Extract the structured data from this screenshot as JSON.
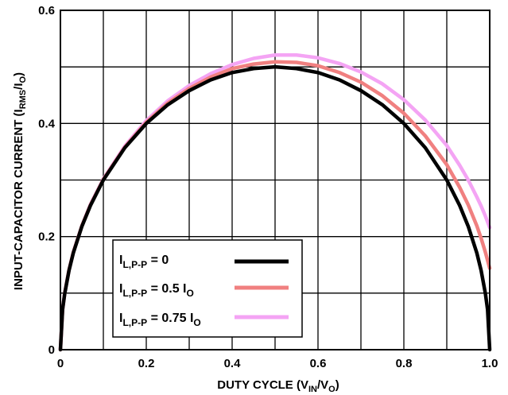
{
  "chart_data": {
    "type": "line",
    "title": "",
    "xlabel": {
      "main": "DUTY CYCLE (V",
      "sub1": "IN",
      "mid": "/V",
      "sub2": "O",
      "end": ")"
    },
    "ylabel": {
      "main": "INPUT-CAPACITOR CURRENT (I",
      "sub1": "RMS",
      "mid": "/I",
      "sub2": "O",
      "end": ")"
    },
    "xlim": [
      0,
      1.0
    ],
    "ylim": [
      0,
      0.6
    ],
    "x_ticks": [
      {
        "value": 0,
        "label": "0"
      },
      {
        "value": 0.2,
        "label": "0.2"
      },
      {
        "value": 0.4,
        "label": "0.4"
      },
      {
        "value": 0.6,
        "label": "0.6"
      },
      {
        "value": 0.8,
        "label": "0.8"
      },
      {
        "value": 1.0,
        "label": "1.0"
      }
    ],
    "y_ticks": [
      {
        "value": 0,
        "label": "0"
      },
      {
        "value": 0.2,
        "label": "0.2"
      },
      {
        "value": 0.4,
        "label": "0.4"
      },
      {
        "value": 0.6,
        "label": "0.6"
      }
    ],
    "grid": true,
    "grid_x_step": 0.1,
    "grid_y_step": 0.1,
    "legend_position": "bottom-left",
    "series": [
      {
        "name": {
          "pre": "I",
          "sub": "L,P-P",
          "post": " = 0",
          "post_sub": ""
        },
        "color": "#000000",
        "x": [
          0,
          0.005,
          0.01,
          0.02,
          0.03,
          0.05,
          0.07,
          0.1,
          0.15,
          0.2,
          0.25,
          0.3,
          0.35,
          0.4,
          0.45,
          0.5,
          0.55,
          0.6,
          0.65,
          0.7,
          0.75,
          0.8,
          0.85,
          0.9,
          0.93,
          0.95,
          0.97,
          0.98,
          0.99,
          0.995,
          1.0
        ],
        "y": [
          0,
          0.071,
          0.099,
          0.14,
          0.171,
          0.218,
          0.255,
          0.3,
          0.357,
          0.4,
          0.433,
          0.458,
          0.477,
          0.49,
          0.497,
          0.5,
          0.497,
          0.49,
          0.477,
          0.458,
          0.433,
          0.4,
          0.357,
          0.3,
          0.255,
          0.218,
          0.171,
          0.14,
          0.099,
          0.071,
          0
        ]
      },
      {
        "name": {
          "pre": "I",
          "sub": "L,P-P",
          "post": " = 0.5 I",
          "post_sub": "O"
        },
        "color": "#f08080",
        "x": [
          0,
          0.005,
          0.01,
          0.02,
          0.03,
          0.05,
          0.07,
          0.1,
          0.15,
          0.2,
          0.25,
          0.3,
          0.35,
          0.4,
          0.45,
          0.5,
          0.55,
          0.6,
          0.65,
          0.7,
          0.75,
          0.8,
          0.85,
          0.9,
          0.93,
          0.95,
          0.97,
          0.98,
          0.99,
          1.0
        ],
        "y": [
          0,
          0.071,
          0.1,
          0.141,
          0.172,
          0.219,
          0.256,
          0.301,
          0.358,
          0.402,
          0.436,
          0.462,
          0.482,
          0.497,
          0.505,
          0.509,
          0.508,
          0.502,
          0.49,
          0.473,
          0.449,
          0.418,
          0.378,
          0.327,
          0.287,
          0.256,
          0.219,
          0.197,
          0.172,
          0.144
        ]
      },
      {
        "name": {
          "pre": "I",
          "sub": "L,P-P",
          "post": " = 0.75 I",
          "post_sub": "O"
        },
        "color": "#f4a4f4",
        "x": [
          0,
          0.005,
          0.01,
          0.02,
          0.03,
          0.05,
          0.07,
          0.1,
          0.15,
          0.2,
          0.25,
          0.3,
          0.35,
          0.4,
          0.45,
          0.5,
          0.55,
          0.6,
          0.65,
          0.7,
          0.75,
          0.8,
          0.85,
          0.9,
          0.93,
          0.95,
          0.97,
          0.98,
          0.99,
          1.0
        ],
        "y": [
          0,
          0.071,
          0.1,
          0.141,
          0.172,
          0.219,
          0.257,
          0.302,
          0.36,
          0.405,
          0.44,
          0.467,
          0.488,
          0.504,
          0.515,
          0.521,
          0.521,
          0.516,
          0.506,
          0.491,
          0.47,
          0.442,
          0.406,
          0.361,
          0.326,
          0.3,
          0.27,
          0.254,
          0.236,
          0.216
        ]
      }
    ]
  }
}
